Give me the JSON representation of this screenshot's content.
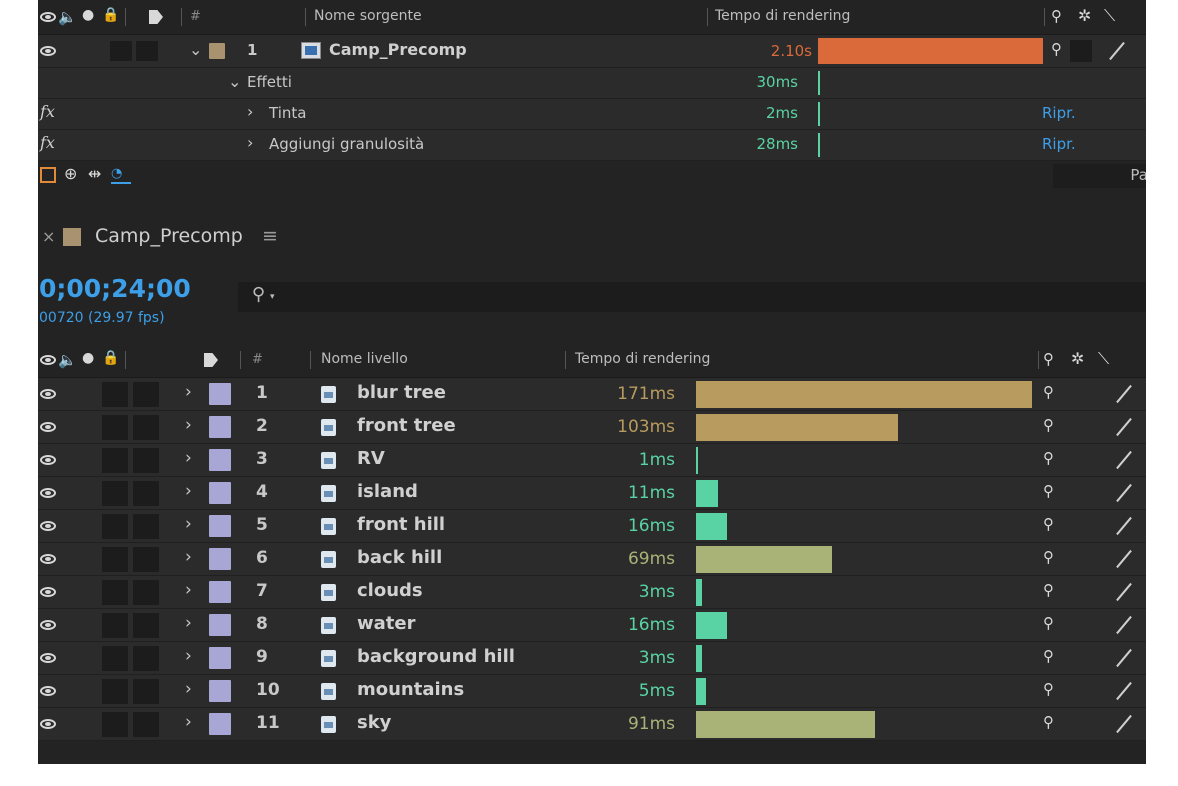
{
  "top_panel": {
    "header": {
      "hash": "#",
      "source_name": "Nome sorgente",
      "render_time": "Tempo di rendering"
    },
    "comp_row": {
      "index": "1",
      "name": "Camp_Precomp",
      "time": "2.10s",
      "bar_fraction": 1.0
    },
    "effects_row": {
      "label": "Effetti",
      "time": "30ms"
    },
    "effects": [
      {
        "fx": "fx",
        "name": "Tinta",
        "time": "2ms",
        "reset": "Ripr."
      },
      {
        "fx": "fx",
        "name": "Aggiungi granulosità",
        "time": "28ms",
        "reset": "Ripr."
      }
    ],
    "right_cut_label": "Pa"
  },
  "comp_tab": {
    "close": "×",
    "name": "Camp_Precomp",
    "menu": "≡"
  },
  "timecode": {
    "main": "0;00;24;00",
    "sub": "00720 (29.97 fps)"
  },
  "search": {
    "icon": "search-icon",
    "placeholder": ""
  },
  "layers_header": {
    "hash": "#",
    "layer_name": "Nome livello",
    "render_time": "Tempo di rendering"
  },
  "layers": [
    {
      "index": "1",
      "name": "blur tree",
      "time": "171ms",
      "ms": 171,
      "color": "#b89b5e"
    },
    {
      "index": "2",
      "name": "front tree",
      "time": "103ms",
      "ms": 103,
      "color": "#b89b5e"
    },
    {
      "index": "3",
      "name": "RV",
      "time": "1ms",
      "ms": 1,
      "color": "#59d3a3"
    },
    {
      "index": "4",
      "name": "island",
      "time": "11ms",
      "ms": 11,
      "color": "#59d3a3"
    },
    {
      "index": "5",
      "name": "front hill",
      "time": "16ms",
      "ms": 16,
      "color": "#59d3a3"
    },
    {
      "index": "6",
      "name": "back hill",
      "time": "69ms",
      "ms": 69,
      "color": "#a9b377"
    },
    {
      "index": "7",
      "name": "clouds",
      "time": "3ms",
      "ms": 3,
      "color": "#59d3a3"
    },
    {
      "index": "8",
      "name": "water",
      "time": "16ms",
      "ms": 16,
      "color": "#59d3a3"
    },
    {
      "index": "9",
      "name": "background hill",
      "time": "3ms",
      "ms": 3,
      "color": "#59d3a3"
    },
    {
      "index": "10",
      "name": "mountains",
      "time": "5ms",
      "ms": 5,
      "color": "#59d3a3"
    },
    {
      "index": "11",
      "name": "sky",
      "time": "91ms",
      "ms": 91,
      "color": "#a9b377"
    }
  ],
  "colors": {
    "accent_orange": "#db6a3a",
    "green": "#59d3a3",
    "tan": "#b89b5e",
    "olive": "#a9b377",
    "blue": "#3d9fe8",
    "label_lavender": "#a8a6d4",
    "label_tan": "#a89270"
  }
}
